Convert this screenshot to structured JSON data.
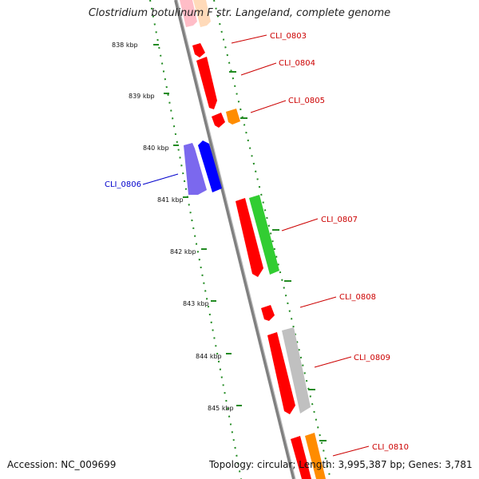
{
  "title": "Clostridium botulinum F str. Langeland, complete genome",
  "footer": {
    "accession": "Accession: NC_009699",
    "summary": "Topology: circular; Length: 3,995,387 bp; Genes: 3,781"
  },
  "colors": {
    "backbone": "#808080",
    "tick": "#228b22",
    "red": "#ff0000",
    "orange": "#ff8c00",
    "green": "#32cd32",
    "blue": "#0000ff",
    "purple": "#7b68ee",
    "gray": "#c0c0c0",
    "pink": "#ffb6c1",
    "peach": "#ffdab9",
    "label_red": "#cc0000",
    "label_blue": "#0000cc"
  },
  "kbp_labels": [
    "838 kbp",
    "839 kbp",
    "840 kbp",
    "841 kbp",
    "842 kbp",
    "843 kbp",
    "844 kbp",
    "845 kbp"
  ],
  "gene_labels": [
    "CLI_0803",
    "CLI_0804",
    "CLI_0805",
    "CLI_0806",
    "CLI_0807",
    "CLI_0808",
    "CLI_0809",
    "CLI_0810"
  ]
}
